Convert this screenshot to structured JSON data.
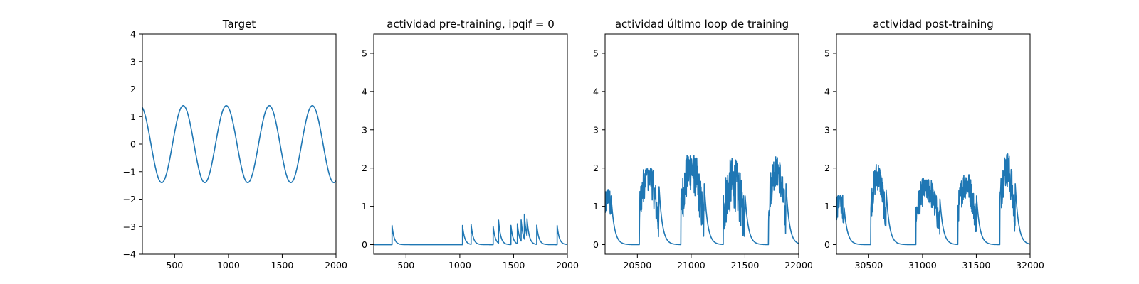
{
  "chart_data": [
    {
      "type": "line",
      "title": "Target",
      "xlabel": "",
      "ylabel": "",
      "xlim": [
        200,
        2000
      ],
      "ylim": [
        -4,
        4
      ],
      "xticks": [
        500,
        1000,
        1500,
        2000
      ],
      "yticks": [
        -4,
        -3,
        -2,
        -1,
        0,
        1,
        2,
        3,
        4
      ],
      "ytick_labels": [
        "−4",
        "−3",
        "−2",
        "−1",
        "0",
        "1",
        "2",
        "3",
        "4"
      ],
      "color": "#1f77b4",
      "series": [
        {
          "description": "sinusoid, amplitude 1.4, period 400, peaks at x = 580, 980, 1380, 1780",
          "x": [
            200,
            250,
            300,
            380,
            430,
            480,
            580,
            630,
            680,
            780,
            830,
            880,
            980,
            1030,
            1080,
            1180,
            1230,
            1280,
            1380,
            1430,
            1480,
            1580,
            1630,
            1680,
            1780,
            1830,
            1880,
            1980,
            2000
          ],
          "y": [
            1.33,
            0.4,
            -0.8,
            -1.4,
            -1.0,
            0.0,
            1.4,
            1.0,
            0.0,
            -1.4,
            -1.0,
            0.0,
            1.4,
            1.0,
            0.0,
            -1.4,
            -1.0,
            0.0,
            1.4,
            1.0,
            0.0,
            -1.4,
            -1.0,
            0.0,
            1.4,
            1.0,
            0.0,
            -1.4,
            -1.33
          ]
        }
      ]
    },
    {
      "type": "line",
      "title": "actividad pre-training, ipqif = 0",
      "xlabel": "",
      "ylabel": "",
      "xlim": [
        200,
        2000
      ],
      "ylim": [
        -0.25,
        5.5
      ],
      "xticks": [
        500,
        1000,
        1500,
        2000
      ],
      "yticks": [
        0,
        1,
        2,
        3,
        4,
        5
      ],
      "color": "#1f77b4",
      "series": [
        {
          "description": "baseline 0 with sharp spikes decaying exponentially",
          "spikes": [
            {
              "x": 370,
              "h": 0.5
            },
            {
              "x": 1025,
              "h": 0.5
            },
            {
              "x": 1105,
              "h": 0.52
            },
            {
              "x": 1310,
              "h": 0.48
            },
            {
              "x": 1360,
              "h": 0.6
            },
            {
              "x": 1475,
              "h": 0.5
            },
            {
              "x": 1535,
              "h": 0.52
            },
            {
              "x": 1570,
              "h": 0.55
            },
            {
              "x": 1600,
              "h": 0.65
            },
            {
              "x": 1625,
              "h": 0.45
            },
            {
              "x": 1715,
              "h": 0.5
            },
            {
              "x": 1905,
              "h": 0.5
            }
          ],
          "decay": 20
        }
      ]
    },
    {
      "type": "line",
      "title": "actividad último loop de training",
      "xlabel": "",
      "ylabel": "",
      "xlim": [
        20200,
        22000
      ],
      "ylim": [
        -0.25,
        5.5
      ],
      "xticks": [
        20500,
        21000,
        21500,
        22000
      ],
      "yticks": [
        0,
        1,
        2,
        3,
        4,
        5
      ],
      "color": "#1f77b4",
      "series": [
        {
          "description": "noisy activity bursts followed by exponential decay",
          "bursts": [
            {
              "start": 20200,
              "end": 20260,
              "base0": 0.8,
              "base1": 1.3,
              "amp": 0.4,
              "max": 1.45
            },
            {
              "start": 20520,
              "end": 20700,
              "base0": 0.5,
              "base1": 1.9,
              "amp": 0.5,
              "max": 2.0
            },
            {
              "start": 20905,
              "end": 21120,
              "base0": 0.5,
              "base1": 2.0,
              "amp": 0.6,
              "max": 2.35
            },
            {
              "start": 21300,
              "end": 21500,
              "base0": 0.6,
              "base1": 1.6,
              "amp": 0.7,
              "max": 2.4
            },
            {
              "start": 21720,
              "end": 21880,
              "base0": 0.6,
              "base1": 2.0,
              "amp": 0.5,
              "max": 2.3
            }
          ],
          "decay": 30
        }
      ]
    },
    {
      "type": "line",
      "title": "actividad post-training",
      "xlabel": "",
      "ylabel": "",
      "xlim": [
        30200,
        32000
      ],
      "ylim": [
        -0.25,
        5.5
      ],
      "xticks": [
        30500,
        31000,
        31500,
        32000
      ],
      "yticks": [
        0,
        1,
        2,
        3,
        4,
        5
      ],
      "color": "#1f77b4",
      "series": [
        {
          "description": "noisy activity bursts followed by exponential decay",
          "bursts": [
            {
              "start": 30200,
              "end": 30270,
              "base0": 0.8,
              "base1": 1.2,
              "amp": 0.35,
              "max": 1.3
            },
            {
              "start": 30520,
              "end": 30660,
              "base0": 0.6,
              "base1": 1.8,
              "amp": 0.4,
              "max": 2.1
            },
            {
              "start": 30940,
              "end": 31160,
              "base0": 0.5,
              "base1": 1.5,
              "amp": 0.4,
              "max": 1.75
            },
            {
              "start": 31330,
              "end": 31500,
              "base0": 0.6,
              "base1": 1.6,
              "amp": 0.4,
              "max": 1.9
            },
            {
              "start": 31720,
              "end": 31860,
              "base0": 0.7,
              "base1": 2.0,
              "amp": 0.5,
              "max": 2.38
            }
          ],
          "decay": 30
        }
      ]
    }
  ]
}
